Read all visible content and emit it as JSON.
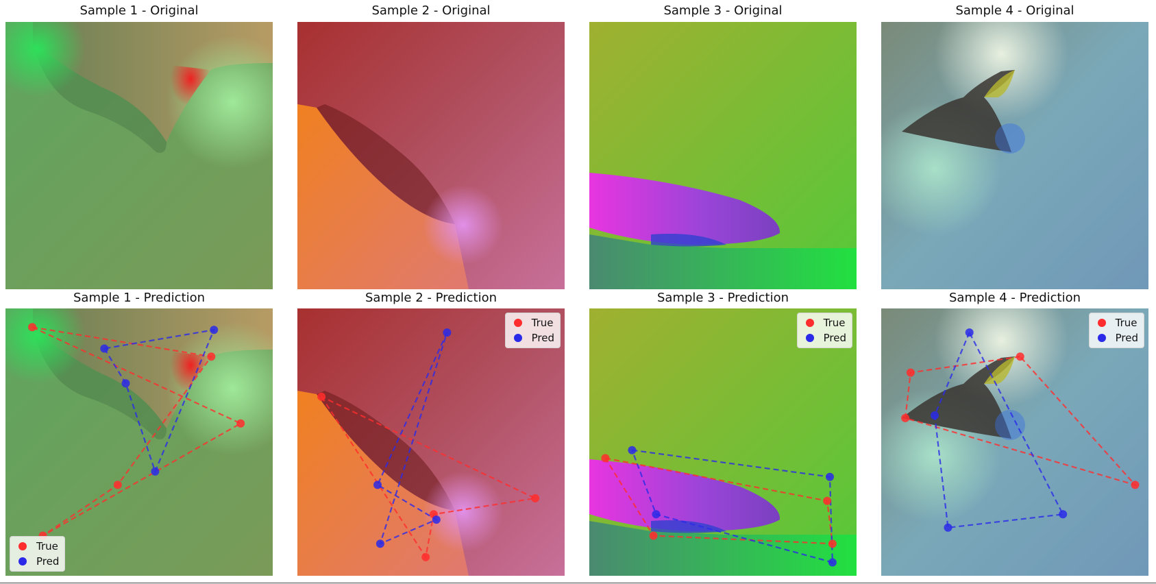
{
  "chart_data": [
    {
      "type": "scatter",
      "title": "Sample 1 - Original",
      "xlim": [
        0,
        1
      ],
      "ylim": [
        0,
        1
      ],
      "series": []
    },
    {
      "type": "scatter",
      "title": "Sample 2 - Original",
      "xlim": [
        0,
        1
      ],
      "ylim": [
        0,
        1
      ],
      "series": []
    },
    {
      "type": "scatter",
      "title": "Sample 3 - Original",
      "xlim": [
        0,
        1
      ],
      "ylim": [
        0,
        1
      ],
      "series": []
    },
    {
      "type": "scatter",
      "title": "Sample 4 - Original",
      "xlim": [
        0,
        1
      ],
      "ylim": [
        0,
        1
      ],
      "series": []
    },
    {
      "type": "scatter",
      "title": "Sample 1 - Prediction",
      "xlim": [
        0,
        1
      ],
      "ylim": [
        0,
        1
      ],
      "legend": "lower-left",
      "series": [
        {
          "name": "True",
          "color": "#ff2d2d",
          "points": [
            [
              0.1,
              0.93
            ],
            [
              0.77,
              0.82
            ],
            [
              0.42,
              0.34
            ],
            [
              0.14,
              0.15
            ],
            [
              0.88,
              0.57
            ]
          ]
        },
        {
          "name": "Pred",
          "color": "#2a2ae8",
          "points": [
            [
              0.37,
              0.85
            ],
            [
              0.45,
              0.72
            ],
            [
              0.56,
              0.39
            ],
            [
              0.78,
              0.92
            ]
          ]
        }
      ]
    },
    {
      "type": "scatter",
      "title": "Sample 2 - Prediction",
      "xlim": [
        0,
        1
      ],
      "ylim": [
        0,
        1
      ],
      "legend": "upper-right",
      "series": [
        {
          "name": "True",
          "color": "#ff2d2d",
          "points": [
            [
              0.09,
              0.67
            ],
            [
              0.48,
              0.07
            ],
            [
              0.51,
              0.23
            ],
            [
              0.89,
              0.29
            ]
          ]
        },
        {
          "name": "Pred",
          "color": "#2a2ae8",
          "points": [
            [
              0.56,
              0.91
            ],
            [
              0.3,
              0.34
            ],
            [
              0.52,
              0.21
            ],
            [
              0.31,
              0.12
            ]
          ]
        }
      ]
    },
    {
      "type": "scatter",
      "title": "Sample 3 - Prediction",
      "xlim": [
        0,
        1
      ],
      "ylim": [
        0,
        1
      ],
      "legend": "upper-right",
      "series": [
        {
          "name": "True",
          "color": "#ff2d2d",
          "points": [
            [
              0.06,
              0.44
            ],
            [
              0.89,
              0.28
            ],
            [
              0.91,
              0.12
            ],
            [
              0.24,
              0.15
            ]
          ]
        },
        {
          "name": "Pred",
          "color": "#2a2ae8",
          "points": [
            [
              0.16,
              0.47
            ],
            [
              0.9,
              0.37
            ],
            [
              0.91,
              0.05
            ],
            [
              0.25,
              0.23
            ]
          ]
        }
      ]
    },
    {
      "type": "scatter",
      "title": "Sample 4 - Prediction",
      "xlim": [
        0,
        1
      ],
      "ylim": [
        0,
        1
      ],
      "legend": "upper-right",
      "series": [
        {
          "name": "True",
          "color": "#ff2d2d",
          "points": [
            [
              0.52,
              0.82
            ],
            [
              0.11,
              0.76
            ],
            [
              0.09,
              0.59
            ],
            [
              0.95,
              0.34
            ]
          ]
        },
        {
          "name": "Pred",
          "color": "#2a2ae8",
          "points": [
            [
              0.33,
              0.91
            ],
            [
              0.2,
              0.6
            ],
            [
              0.25,
              0.18
            ],
            [
              0.68,
              0.23
            ]
          ]
        }
      ]
    }
  ],
  "legend_labels": {
    "true": "True",
    "pred": "Pred"
  },
  "colors": {
    "true": "#ff2d2d",
    "pred": "#2a2ae8"
  }
}
